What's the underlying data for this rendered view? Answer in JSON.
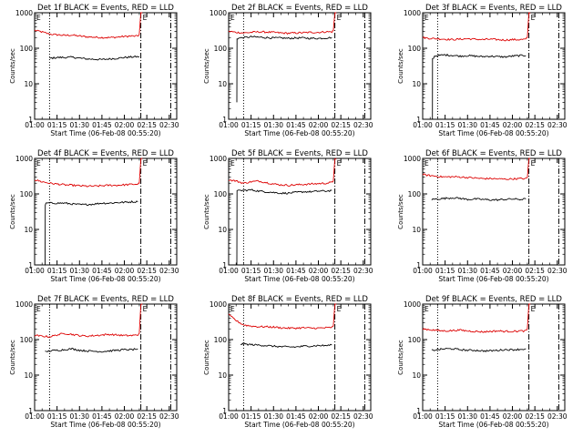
{
  "page": {
    "background": "#ffffff",
    "events_color": "#000000",
    "lld_color": "#dd0000"
  },
  "shared": {
    "xlabel": "Start Time (06-Feb-08 00:55:20)",
    "ylabel": "Counts/sec",
    "x_tick_labels": [
      "01:00",
      "01:15",
      "01:30",
      "01:45",
      "02:00",
      "02:15",
      "02:30"
    ],
    "y_tick_labels": [
      "1",
      "10",
      "100",
      "1000"
    ],
    "marker_label": "E"
  },
  "chart_data": [
    {
      "type": "line",
      "title": "Det 1f BLACK = Events, RED = LLD",
      "xlabel": "Start Time (06-Feb-08 00:55:20)",
      "ylabel": "Counts/sec",
      "x_unit": "minutes after 01:00",
      "xlim": [
        0,
        95
      ],
      "ylim": [
        1,
        1000
      ],
      "yscale": "log",
      "vlines": [
        {
          "x": 10,
          "style": "dotted"
        },
        {
          "x": 71,
          "style": "dash-dot"
        },
        {
          "x": 91,
          "style": "dash-dot"
        }
      ],
      "series": [
        {
          "name": "RED = LLD",
          "color": "#dd0000",
          "x": [
            0,
            3,
            6,
            10,
            15,
            20,
            25,
            30,
            35,
            40,
            45,
            50,
            55,
            60,
            65,
            69,
            70,
            71,
            72
          ],
          "y": [
            320,
            300,
            280,
            250,
            240,
            230,
            235,
            220,
            210,
            205,
            200,
            200,
            205,
            215,
            220,
            220,
            250,
            1000,
            1000
          ]
        },
        {
          "name": "BLACK = Events",
          "color": "#000000",
          "x": [
            10,
            15,
            20,
            25,
            30,
            35,
            40,
            45,
            50,
            55,
            60,
            65,
            70
          ],
          "y": [
            52,
            55,
            55,
            56,
            53,
            50,
            49,
            48,
            50,
            52,
            55,
            57,
            58
          ]
        }
      ]
    },
    {
      "type": "line",
      "title": "Det 2f BLACK = Events, RED = LLD",
      "xlabel": "Start Time (06-Feb-08 00:55:20)",
      "ylabel": "Counts/sec",
      "x_unit": "minutes after 01:00",
      "xlim": [
        0,
        95
      ],
      "ylim": [
        1,
        1000
      ],
      "yscale": "log",
      "vlines": [
        {
          "x": 10,
          "style": "dotted"
        },
        {
          "x": 71,
          "style": "dash-dot"
        },
        {
          "x": 91,
          "style": "dash-dot"
        }
      ],
      "series": [
        {
          "name": "RED = LLD",
          "color": "#dd0000",
          "x": [
            0,
            5,
            10,
            15,
            20,
            25,
            30,
            35,
            40,
            45,
            50,
            55,
            60,
            65,
            69,
            70,
            71,
            72
          ],
          "y": [
            300,
            280,
            270,
            280,
            290,
            285,
            280,
            270,
            265,
            270,
            275,
            280,
            280,
            290,
            290,
            310,
            1000,
            1000
          ]
        },
        {
          "name": "BLACK = Events",
          "color": "#000000",
          "x": [
            5.5,
            5.6,
            6,
            10,
            15,
            20,
            25,
            30,
            35,
            40,
            45,
            50,
            55,
            60,
            65,
            69
          ],
          "y": [
            3,
            180,
            190,
            200,
            210,
            205,
            200,
            195,
            195,
            190,
            195,
            195,
            190,
            190,
            195,
            200
          ]
        }
      ]
    },
    {
      "type": "line",
      "title": "Det 3f BLACK = Events, RED = LLD",
      "xlabel": "Start Time (06-Feb-08 00:55:20)",
      "ylabel": "Counts/sec",
      "x_unit": "minutes after 01:00",
      "xlim": [
        0,
        95
      ],
      "ylim": [
        1,
        1000
      ],
      "yscale": "log",
      "vlines": [
        {
          "x": 10,
          "style": "dotted"
        },
        {
          "x": 71,
          "style": "dash-dot"
        },
        {
          "x": 91,
          "style": "dash-dot"
        }
      ],
      "series": [
        {
          "name": "RED = LLD",
          "color": "#dd0000",
          "x": [
            0,
            5,
            10,
            15,
            20,
            25,
            30,
            35,
            40,
            45,
            50,
            55,
            60,
            65,
            69,
            70,
            71,
            72
          ],
          "y": [
            200,
            190,
            185,
            180,
            175,
            180,
            185,
            180,
            175,
            180,
            175,
            170,
            175,
            175,
            180,
            200,
            1000,
            1000
          ]
        },
        {
          "name": "BLACK = Events",
          "color": "#000000",
          "x": [
            6.5,
            6.6,
            8,
            10,
            15,
            20,
            25,
            30,
            35,
            40,
            45,
            50,
            55,
            60,
            65,
            69
          ],
          "y": [
            1,
            50,
            60,
            62,
            65,
            63,
            60,
            62,
            60,
            58,
            60,
            58,
            57,
            60,
            62,
            62
          ]
        }
      ]
    },
    {
      "type": "line",
      "title": "Det 4f BLACK = Events, RED = LLD",
      "xlabel": "Start Time (06-Feb-08 00:55:20)",
      "ylabel": "Counts/sec",
      "x_unit": "minutes after 01:00",
      "xlim": [
        0,
        95
      ],
      "ylim": [
        1,
        1000
      ],
      "yscale": "log",
      "vlines": [
        {
          "x": 10,
          "style": "dotted"
        },
        {
          "x": 71,
          "style": "dash-dot"
        },
        {
          "x": 91,
          "style": "dash-dot"
        }
      ],
      "series": [
        {
          "name": "RED = LLD",
          "color": "#dd0000",
          "x": [
            0,
            5,
            10,
            15,
            20,
            25,
            30,
            35,
            40,
            45,
            50,
            55,
            60,
            65,
            69,
            70,
            71,
            72
          ],
          "y": [
            250,
            220,
            200,
            190,
            180,
            175,
            170,
            165,
            165,
            170,
            175,
            175,
            180,
            185,
            190,
            200,
            1000,
            1000
          ]
        },
        {
          "name": "BLACK = Events",
          "color": "#000000",
          "x": [
            7,
            7.1,
            8,
            10,
            15,
            20,
            25,
            30,
            35,
            40,
            45,
            50,
            55,
            60,
            65,
            69
          ],
          "y": [
            1,
            50,
            55,
            55,
            55,
            55,
            52,
            50,
            50,
            52,
            55,
            55,
            57,
            58,
            60,
            60
          ]
        }
      ]
    },
    {
      "type": "line",
      "title": "Det 5f BLACK = Events, RED = LLD",
      "xlabel": "Start Time (06-Feb-08 00:55:20)",
      "ylabel": "Counts/sec",
      "x_unit": "minutes after 01:00",
      "xlim": [
        0,
        95
      ],
      "ylim": [
        1,
        1000
      ],
      "yscale": "log",
      "vlines": [
        {
          "x": 10,
          "style": "dotted"
        },
        {
          "x": 71,
          "style": "dash-dot"
        },
        {
          "x": 91,
          "style": "dash-dot"
        }
      ],
      "series": [
        {
          "name": "RED = LLD",
          "color": "#dd0000",
          "x": [
            0,
            5,
            10,
            15,
            20,
            25,
            30,
            35,
            40,
            45,
            50,
            55,
            60,
            65,
            69,
            70,
            71,
            72
          ],
          "y": [
            250,
            230,
            200,
            220,
            230,
            210,
            190,
            180,
            175,
            180,
            185,
            190,
            195,
            200,
            210,
            230,
            1000,
            1000
          ]
        },
        {
          "name": "BLACK = Events",
          "color": "#000000",
          "x": [
            5.5,
            5.6,
            8,
            10,
            15,
            20,
            25,
            30,
            35,
            40,
            45,
            50,
            55,
            60,
            65,
            69
          ],
          "y": [
            1,
            120,
            125,
            125,
            130,
            120,
            115,
            110,
            105,
            105,
            110,
            115,
            115,
            120,
            120,
            125
          ]
        }
      ]
    },
    {
      "type": "line",
      "title": "Det 6f BLACK = Events, RED = LLD",
      "xlabel": "Start Time (06-Feb-08 00:55:20)",
      "ylabel": "Counts/sec",
      "x_unit": "minutes after 01:00",
      "xlim": [
        0,
        95
      ],
      "ylim": [
        1,
        1000
      ],
      "yscale": "log",
      "vlines": [
        {
          "x": 10,
          "style": "dotted"
        },
        {
          "x": 71,
          "style": "dash-dot"
        },
        {
          "x": 91,
          "style": "dash-dot"
        }
      ],
      "series": [
        {
          "name": "RED = LLD",
          "color": "#dd0000",
          "x": [
            0,
            5,
            10,
            15,
            20,
            25,
            30,
            35,
            40,
            45,
            50,
            55,
            60,
            65,
            69,
            70,
            71,
            72
          ],
          "y": [
            350,
            330,
            310,
            300,
            305,
            300,
            290,
            280,
            270,
            270,
            265,
            260,
            265,
            270,
            270,
            290,
            1000,
            1000
          ]
        },
        {
          "name": "BLACK = Events",
          "color": "#000000",
          "x": [
            6,
            10,
            15,
            20,
            25,
            30,
            35,
            40,
            45,
            50,
            55,
            60,
            65,
            69
          ],
          "y": [
            70,
            72,
            75,
            78,
            75,
            70,
            72,
            70,
            68,
            68,
            70,
            72,
            70,
            72
          ]
        }
      ]
    },
    {
      "type": "line",
      "title": "Det 7f BLACK = Events, RED = LLD",
      "xlabel": "Start Time (06-Feb-08 00:55:20)",
      "ylabel": "Counts/sec",
      "x_unit": "minutes after 01:00",
      "xlim": [
        0,
        95
      ],
      "ylim": [
        1,
        1000
      ],
      "yscale": "log",
      "vlines": [
        {
          "x": 10,
          "style": "dotted"
        },
        {
          "x": 71,
          "style": "dash-dot"
        },
        {
          "x": 91,
          "style": "dash-dot"
        }
      ],
      "series": [
        {
          "name": "RED = LLD",
          "color": "#dd0000",
          "x": [
            0,
            5,
            10,
            15,
            20,
            25,
            30,
            35,
            40,
            45,
            50,
            55,
            60,
            65,
            69,
            70,
            71,
            72
          ],
          "y": [
            130,
            125,
            120,
            135,
            150,
            140,
            130,
            125,
            130,
            135,
            140,
            135,
            130,
            130,
            135,
            150,
            1000,
            1000
          ]
        },
        {
          "name": "BLACK = Events",
          "color": "#000000",
          "x": [
            7,
            10,
            15,
            20,
            25,
            30,
            35,
            40,
            45,
            50,
            55,
            60,
            65,
            69
          ],
          "y": [
            45,
            48,
            50,
            52,
            55,
            50,
            48,
            47,
            46,
            48,
            50,
            52,
            52,
            55
          ]
        }
      ]
    },
    {
      "type": "line",
      "title": "Det 8f BLACK = Events, RED = LLD",
      "xlabel": "Start Time (06-Feb-08 00:55:20)",
      "ylabel": "Counts/sec",
      "x_unit": "minutes after 01:00",
      "xlim": [
        0,
        95
      ],
      "ylim": [
        1,
        1000
      ],
      "yscale": "log",
      "vlines": [
        {
          "x": 10,
          "style": "dotted"
        },
        {
          "x": 71,
          "style": "dash-dot"
        },
        {
          "x": 91,
          "style": "dash-dot"
        }
      ],
      "series": [
        {
          "name": "RED = LLD",
          "color": "#dd0000",
          "x": [
            0,
            3,
            6,
            10,
            15,
            20,
            25,
            30,
            35,
            40,
            45,
            50,
            55,
            60,
            65,
            69,
            70,
            71,
            72
          ],
          "y": [
            500,
            400,
            320,
            260,
            240,
            230,
            230,
            225,
            215,
            210,
            210,
            215,
            210,
            210,
            215,
            220,
            240,
            1000,
            1000
          ]
        },
        {
          "name": "BLACK = Events",
          "color": "#000000",
          "x": [
            8,
            10,
            15,
            20,
            25,
            30,
            35,
            40,
            45,
            50,
            55,
            60,
            65,
            69
          ],
          "y": [
            75,
            75,
            72,
            70,
            68,
            65,
            63,
            62,
            62,
            65,
            66,
            68,
            68,
            70
          ]
        }
      ]
    },
    {
      "type": "line",
      "title": "Det 9f BLACK = Events, RED = LLD",
      "xlabel": "Start Time (06-Feb-08 00:55:20)",
      "ylabel": "Counts/sec",
      "x_unit": "minutes after 01:00",
      "xlim": [
        0,
        95
      ],
      "ylim": [
        1,
        1000
      ],
      "yscale": "log",
      "vlines": [
        {
          "x": 10,
          "style": "dotted"
        },
        {
          "x": 71,
          "style": "dash-dot"
        },
        {
          "x": 91,
          "style": "dash-dot"
        }
      ],
      "series": [
        {
          "name": "RED = LLD",
          "color": "#dd0000",
          "x": [
            0,
            5,
            10,
            15,
            20,
            25,
            30,
            35,
            40,
            45,
            50,
            55,
            60,
            65,
            69,
            70,
            71,
            72
          ],
          "y": [
            200,
            190,
            180,
            175,
            180,
            185,
            175,
            170,
            165,
            170,
            175,
            170,
            170,
            175,
            175,
            200,
            1000,
            1000
          ]
        },
        {
          "name": "BLACK = Events",
          "color": "#000000",
          "x": [
            6,
            10,
            15,
            20,
            25,
            30,
            35,
            40,
            45,
            50,
            55,
            60,
            65,
            69
          ],
          "y": [
            50,
            52,
            55,
            55,
            52,
            50,
            50,
            48,
            48,
            50,
            52,
            52,
            53,
            55
          ]
        }
      ]
    }
  ]
}
